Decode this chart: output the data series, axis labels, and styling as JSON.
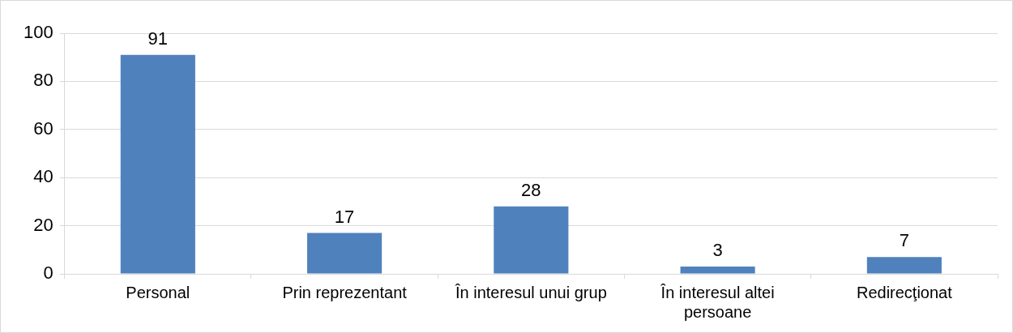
{
  "chart_data": {
    "type": "bar",
    "categories": [
      "Personal",
      "Prin reprezentant",
      "În interesul unui grup",
      "În interesul altei persoane",
      "Redirecţionat"
    ],
    "values": [
      91,
      17,
      28,
      3,
      7
    ],
    "color": "#4f81bd",
    "ylim": [
      0,
      100
    ],
    "yticks": [
      0,
      20,
      40,
      60,
      80,
      100
    ],
    "grid": "y",
    "data_labels": true,
    "legend": false
  }
}
